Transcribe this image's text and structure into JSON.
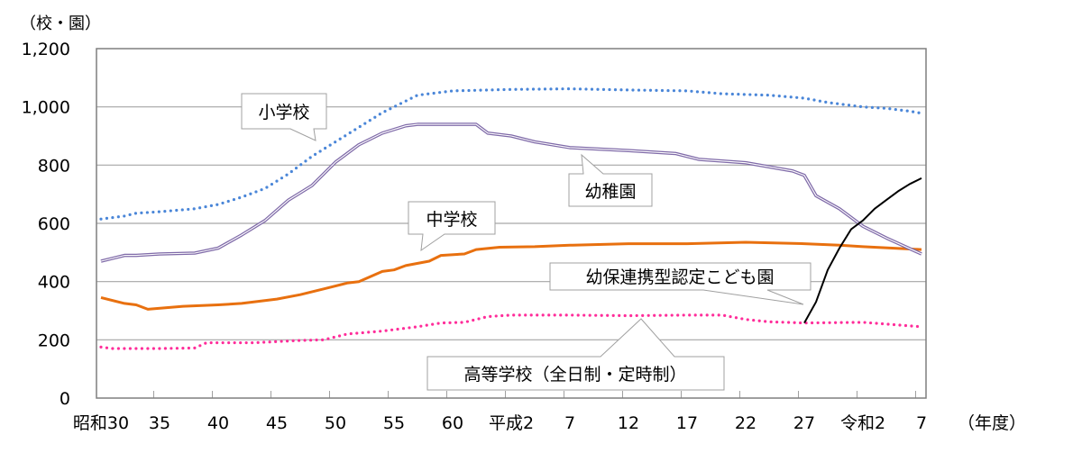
{
  "chart_data": {
    "type": "line",
    "ylabel": "（校・園）",
    "xlabel": "（年度）",
    "ylim": [
      0,
      1200
    ],
    "yticks": [
      "0",
      "200",
      "400",
      "600",
      "800",
      "1,000",
      "1,200"
    ],
    "xticks": [
      "昭和30",
      "35",
      "40",
      "45",
      "50",
      "55",
      "60",
      "平成2",
      "7",
      "12",
      "17",
      "22",
      "27",
      "令和2",
      "7"
    ],
    "grid": true,
    "legend": "callouts",
    "series": [
      {
        "name": "小学校",
        "color": "#4a86d8",
        "style": "dotted",
        "points": [
          [
            "昭和30",
            615
          ],
          [
            "昭和32",
            625
          ],
          [
            "昭和33",
            635
          ],
          [
            "昭和35",
            640
          ],
          [
            "昭和38",
            650
          ],
          [
            "昭和40",
            665
          ],
          [
            "昭和42",
            690
          ],
          [
            "昭和44",
            720
          ],
          [
            "昭和46",
            770
          ],
          [
            "昭和48",
            830
          ],
          [
            "昭和50",
            880
          ],
          [
            "昭和52",
            930
          ],
          [
            "昭和54",
            980
          ],
          [
            "昭和56",
            1020
          ],
          [
            "昭和57",
            1040
          ],
          [
            "昭和60",
            1055
          ],
          [
            "平成2",
            1060
          ],
          [
            "平成7",
            1062
          ],
          [
            "平成12",
            1058
          ],
          [
            "平成17",
            1055
          ],
          [
            "平成20",
            1045
          ],
          [
            "平成24",
            1040
          ],
          [
            "平成27",
            1030
          ],
          [
            "平成29",
            1015
          ],
          [
            "令和2",
            1000
          ],
          [
            "令和4",
            995
          ],
          [
            "令和6",
            985
          ],
          [
            "令和7",
            978
          ]
        ]
      },
      {
        "name": "幼稚園",
        "color": "#7f6aa8",
        "style": "double",
        "points": [
          [
            "昭和30",
            470
          ],
          [
            "昭和32",
            490
          ],
          [
            "昭和33",
            490
          ],
          [
            "昭和35",
            495
          ],
          [
            "昭和38",
            498
          ],
          [
            "昭和40",
            515
          ],
          [
            "昭和42",
            560
          ],
          [
            "昭和44",
            610
          ],
          [
            "昭和46",
            680
          ],
          [
            "昭和48",
            730
          ],
          [
            "昭和50",
            810
          ],
          [
            "昭和52",
            870
          ],
          [
            "昭和54",
            910
          ],
          [
            "昭和56",
            935
          ],
          [
            "昭和57",
            940
          ],
          [
            "昭和62",
            940
          ],
          [
            "昭和63",
            910
          ],
          [
            "平成2",
            900
          ],
          [
            "平成4",
            880
          ],
          [
            "平成7",
            860
          ],
          [
            "平成12",
            850
          ],
          [
            "平成16",
            840
          ],
          [
            "平成18",
            820
          ],
          [
            "平成22",
            808
          ],
          [
            "平成26",
            780
          ],
          [
            "平成27",
            765
          ],
          [
            "平成28",
            695
          ],
          [
            "平成30",
            650
          ],
          [
            "令和2",
            590
          ],
          [
            "令和4",
            550
          ],
          [
            "令和7",
            495
          ]
        ]
      },
      {
        "name": "中学校",
        "color": "#e8700f",
        "style": "solid",
        "points": [
          [
            "昭和30",
            345
          ],
          [
            "昭和32",
            325
          ],
          [
            "昭和33",
            320
          ],
          [
            "昭和34",
            305
          ],
          [
            "昭和37",
            315
          ],
          [
            "昭和40",
            320
          ],
          [
            "昭和42",
            325
          ],
          [
            "昭和45",
            340
          ],
          [
            "昭和47",
            355
          ],
          [
            "昭和49",
            375
          ],
          [
            "昭和51",
            395
          ],
          [
            "昭和52",
            400
          ],
          [
            "昭和54",
            435
          ],
          [
            "昭和55",
            440
          ],
          [
            "昭和56",
            455
          ],
          [
            "昭和58",
            470
          ],
          [
            "昭和59",
            490
          ],
          [
            "昭和61",
            495
          ],
          [
            "昭和62",
            510
          ],
          [
            "昭和64",
            518
          ],
          [
            "平成4",
            520
          ],
          [
            "平成7",
            525
          ],
          [
            "平成12",
            530
          ],
          [
            "平成17",
            530
          ],
          [
            "平成22",
            535
          ],
          [
            "平成27",
            530
          ],
          [
            "平成30",
            525
          ],
          [
            "令和2",
            520
          ],
          [
            "令和7",
            510
          ]
        ]
      },
      {
        "name": "高等学校（全日制・定時制）",
        "color": "#ff2d9a",
        "style": "dotted",
        "points": [
          [
            "昭和30",
            175
          ],
          [
            "昭和31",
            170
          ],
          [
            "昭和35",
            170
          ],
          [
            "昭和38",
            172
          ],
          [
            "昭和39",
            190
          ],
          [
            "昭和43",
            190
          ],
          [
            "昭和47",
            198
          ],
          [
            "昭和49",
            200
          ],
          [
            "昭和51",
            220
          ],
          [
            "昭和54",
            230
          ],
          [
            "昭和57",
            245
          ],
          [
            "昭和59",
            258
          ],
          [
            "昭和61",
            260
          ],
          [
            "昭和63",
            280
          ],
          [
            "平成2",
            285
          ],
          [
            "平成7",
            285
          ],
          [
            "平成12",
            283
          ],
          [
            "平成17",
            285
          ],
          [
            "平成20",
            285
          ],
          [
            "平成22",
            270
          ],
          [
            "平成24",
            262
          ],
          [
            "平成27",
            258
          ],
          [
            "令和2",
            260
          ],
          [
            "令和7",
            245
          ]
        ]
      },
      {
        "name": "幼保連携型認定こども園",
        "color": "#000000",
        "style": "solid",
        "points": [
          [
            "平成27",
            258
          ],
          [
            "平成28",
            330
          ],
          [
            "平成29",
            440
          ],
          [
            "平成30",
            515
          ],
          [
            "令和元",
            580
          ],
          [
            "令和2",
            610
          ],
          [
            "令和3",
            650
          ],
          [
            "令和4",
            680
          ],
          [
            "令和5",
            710
          ],
          [
            "令和6",
            735
          ],
          [
            "令和7",
            755
          ]
        ]
      }
    ]
  }
}
